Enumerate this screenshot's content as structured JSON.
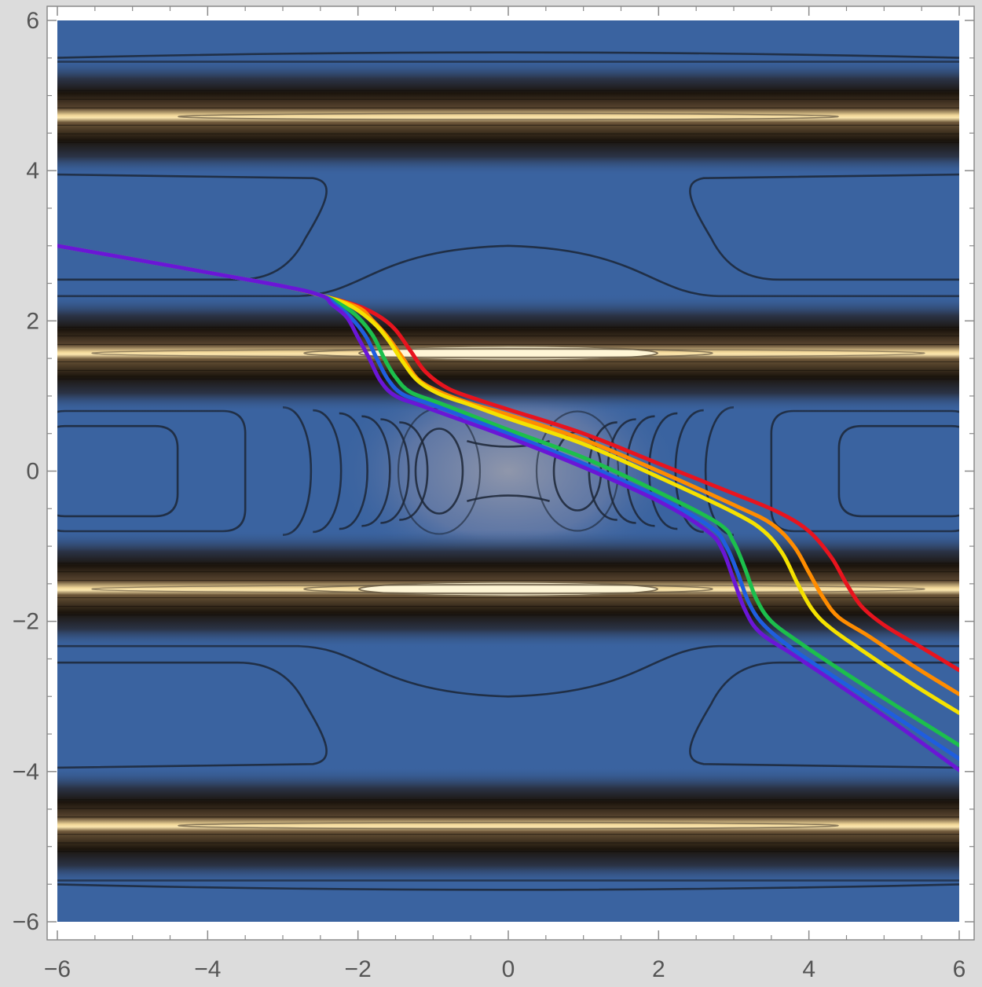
{
  "chart_data": {
    "type": "contour",
    "title": "",
    "xlabel": "",
    "ylabel": "",
    "xlim": [
      -6,
      6
    ],
    "ylim": [
      -6,
      6
    ],
    "grid": false,
    "legend": "none",
    "x_ticks": [
      {
        "value": -6,
        "label": "−6"
      },
      {
        "value": -4,
        "label": "−4"
      },
      {
        "value": -2,
        "label": "−2"
      },
      {
        "value": 0,
        "label": "0"
      },
      {
        "value": 2,
        "label": "2"
      },
      {
        "value": 4,
        "label": "4"
      },
      {
        "value": 6,
        "label": "6"
      }
    ],
    "y_ticks": [
      {
        "value": -6,
        "label": "−6"
      },
      {
        "value": -4,
        "label": "−4"
      },
      {
        "value": -2,
        "label": "−2"
      },
      {
        "value": 0,
        "label": "0"
      },
      {
        "value": 2,
        "label": "2"
      },
      {
        "value": 4,
        "label": "4"
      },
      {
        "value": 6,
        "label": "6"
      }
    ],
    "colors": {
      "background_blue": "#3a63a0",
      "dark_band": "#1b140c",
      "bright_band": "#fbe6ae",
      "contour_line": "#1c2636",
      "frame": "#8a8a8a"
    },
    "bands": [
      {
        "y": 4.72,
        "kind": "bright"
      },
      {
        "y": 1.57,
        "kind": "bright"
      },
      {
        "y": -1.57,
        "kind": "bright"
      },
      {
        "y": -4.72,
        "kind": "bright"
      }
    ],
    "series": [
      {
        "color": "#e8141e",
        "points": [
          [
            -6,
            3.0
          ],
          [
            -3.2,
            2.5
          ],
          [
            -2.5,
            2.34
          ],
          [
            -2.0,
            2.2
          ],
          [
            -1.7,
            2.05
          ],
          [
            -1.5,
            1.88
          ],
          [
            -1.3,
            1.6
          ],
          [
            -1.1,
            1.32
          ],
          [
            -0.8,
            1.1
          ],
          [
            -0.4,
            0.95
          ],
          [
            0,
            0.82
          ],
          [
            1,
            0.5
          ],
          [
            2,
            0.1
          ],
          [
            3,
            -0.3
          ],
          [
            3.6,
            -0.55
          ],
          [
            4.0,
            -0.8
          ],
          [
            4.3,
            -1.15
          ],
          [
            4.5,
            -1.5
          ],
          [
            4.7,
            -1.8
          ],
          [
            5.0,
            -2.05
          ],
          [
            5.5,
            -2.35
          ],
          [
            6,
            -2.65
          ]
        ]
      },
      {
        "color": "#ff8c00",
        "points": [
          [
            -6,
            3.0
          ],
          [
            -3.2,
            2.5
          ],
          [
            -2.5,
            2.34
          ],
          [
            -2.0,
            2.18
          ],
          [
            -1.8,
            2.0
          ],
          [
            -1.6,
            1.78
          ],
          [
            -1.4,
            1.5
          ],
          [
            -1.2,
            1.22
          ],
          [
            -0.9,
            1.05
          ],
          [
            -0.5,
            0.9
          ],
          [
            0,
            0.75
          ],
          [
            1,
            0.42
          ],
          [
            2,
            0.0
          ],
          [
            3,
            -0.45
          ],
          [
            3.5,
            -0.7
          ],
          [
            3.8,
            -1.0
          ],
          [
            4.0,
            -1.35
          ],
          [
            4.2,
            -1.7
          ],
          [
            4.4,
            -1.95
          ],
          [
            4.8,
            -2.2
          ],
          [
            5.4,
            -2.6
          ],
          [
            6,
            -2.97
          ]
        ]
      },
      {
        "color": "#f5e200",
        "points": [
          [
            -6,
            3.0
          ],
          [
            -3.2,
            2.5
          ],
          [
            -2.5,
            2.34
          ],
          [
            -2.1,
            2.2
          ],
          [
            -1.8,
            1.98
          ],
          [
            -1.6,
            1.75
          ],
          [
            -1.4,
            1.45
          ],
          [
            -1.2,
            1.2
          ],
          [
            -0.9,
            1.02
          ],
          [
            -0.5,
            0.88
          ],
          [
            0,
            0.7
          ],
          [
            1,
            0.36
          ],
          [
            2,
            -0.08
          ],
          [
            3,
            -0.55
          ],
          [
            3.4,
            -0.8
          ],
          [
            3.65,
            -1.1
          ],
          [
            3.85,
            -1.5
          ],
          [
            4.05,
            -1.85
          ],
          [
            4.3,
            -2.1
          ],
          [
            4.8,
            -2.45
          ],
          [
            5.4,
            -2.85
          ],
          [
            6,
            -3.22
          ]
        ]
      },
      {
        "color": "#1cbf4c",
        "points": [
          [
            -6,
            3.0
          ],
          [
            -3.2,
            2.5
          ],
          [
            -2.5,
            2.34
          ],
          [
            -2.2,
            2.2
          ],
          [
            -2.0,
            2.05
          ],
          [
            -1.8,
            1.8
          ],
          [
            -1.65,
            1.5
          ],
          [
            -1.5,
            1.25
          ],
          [
            -1.3,
            1.05
          ],
          [
            -0.9,
            0.9
          ],
          [
            0,
            0.55
          ],
          [
            1,
            0.18
          ],
          [
            2,
            -0.28
          ],
          [
            2.8,
            -0.7
          ],
          [
            3.0,
            -0.95
          ],
          [
            3.15,
            -1.3
          ],
          [
            3.3,
            -1.7
          ],
          [
            3.5,
            -2.0
          ],
          [
            3.9,
            -2.3
          ],
          [
            4.5,
            -2.7
          ],
          [
            5.2,
            -3.15
          ],
          [
            6,
            -3.65
          ]
        ]
      },
      {
        "color": "#1f5ddf",
        "points": [
          [
            -6,
            3.0
          ],
          [
            -3.2,
            2.5
          ],
          [
            -2.5,
            2.34
          ],
          [
            -2.3,
            2.22
          ],
          [
            -2.1,
            2.05
          ],
          [
            -1.9,
            1.8
          ],
          [
            -1.75,
            1.5
          ],
          [
            -1.6,
            1.22
          ],
          [
            -1.4,
            1.02
          ],
          [
            -1.0,
            0.88
          ],
          [
            0,
            0.5
          ],
          [
            1,
            0.1
          ],
          [
            2,
            -0.35
          ],
          [
            2.7,
            -0.75
          ],
          [
            2.9,
            -1.0
          ],
          [
            3.05,
            -1.35
          ],
          [
            3.2,
            -1.75
          ],
          [
            3.4,
            -2.05
          ],
          [
            3.8,
            -2.38
          ],
          [
            4.4,
            -2.78
          ],
          [
            5.2,
            -3.3
          ],
          [
            6,
            -3.83
          ]
        ]
      },
      {
        "color": "#6a16d6",
        "points": [
          [
            -6,
            3.0
          ],
          [
            -3.2,
            2.5
          ],
          [
            -2.5,
            2.34
          ],
          [
            -2.35,
            2.22
          ],
          [
            -2.15,
            2.05
          ],
          [
            -2.0,
            1.78
          ],
          [
            -1.85,
            1.5
          ],
          [
            -1.7,
            1.2
          ],
          [
            -1.5,
            1.0
          ],
          [
            -1.1,
            0.85
          ],
          [
            0,
            0.45
          ],
          [
            1,
            0.05
          ],
          [
            2,
            -0.4
          ],
          [
            2.65,
            -0.8
          ],
          [
            2.85,
            -1.05
          ],
          [
            3.0,
            -1.45
          ],
          [
            3.15,
            -1.85
          ],
          [
            3.35,
            -2.15
          ],
          [
            3.8,
            -2.45
          ],
          [
            4.4,
            -2.85
          ],
          [
            5.2,
            -3.4
          ],
          [
            6,
            -3.98
          ]
        ]
      }
    ]
  }
}
